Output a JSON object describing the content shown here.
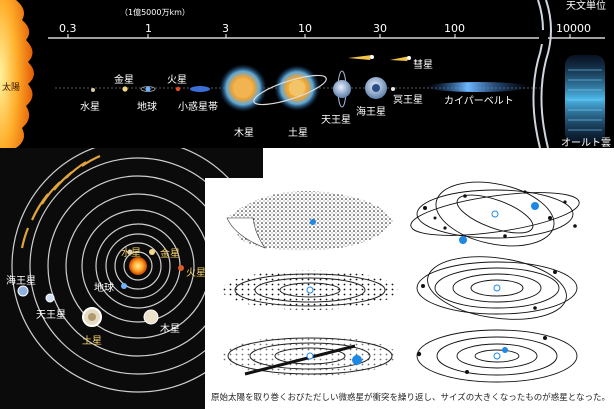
{
  "top": {
    "unit_label": "（1億5000万km）",
    "unit_header": "天文単位",
    "ticks": [
      "0.3",
      "1",
      "3",
      "10",
      "30",
      "100",
      "10000"
    ],
    "labels": {
      "sun": "太陽",
      "mercury": "水星",
      "venus": "金星",
      "earth": "地球",
      "mars": "火星",
      "asteroid_belt": "小惑星帯",
      "jupiter": "木星",
      "saturn": "土星",
      "uranus": "天王星",
      "neptune": "海王星",
      "pluto": "冥王星",
      "comet": "彗星",
      "kuiper_belt": "カイパーベルト",
      "oort_cloud": "オールト雲"
    }
  },
  "left": {
    "labels": {
      "mercury": "水星",
      "venus": "金星",
      "mars": "火星",
      "earth": "地球",
      "neptune": "海王星",
      "uranus": "天王星",
      "saturn": "土星",
      "jupiter": "木星"
    }
  },
  "right": {
    "caption": "原始太陽を取り巻くおびただしい微惑星が衝突を繰り返し、サイズの大きくなったものが惑星となった。"
  }
}
